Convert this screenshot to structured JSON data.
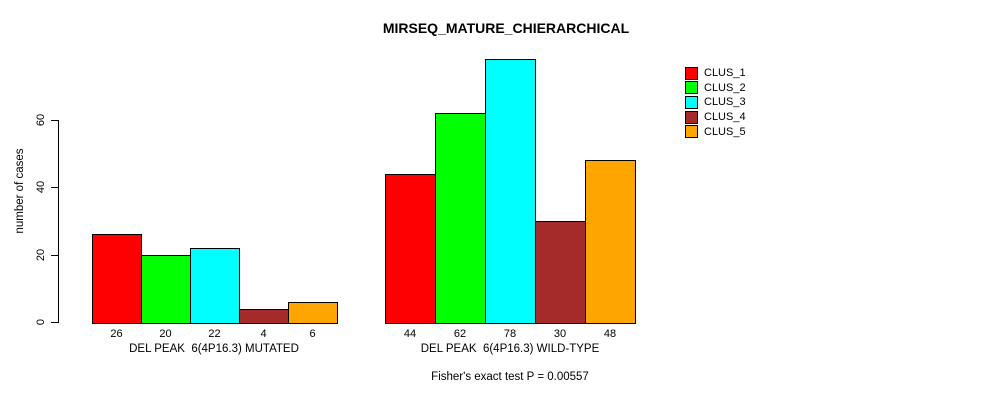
{
  "chart_data": {
    "type": "bar",
    "title": "MIRSEQ_MATURE_CHIERARCHICAL",
    "ylabel": "number of cases",
    "yticks": [
      0,
      20,
      40,
      60
    ],
    "ylim": [
      0,
      80
    ],
    "grid": false,
    "legend_position": "top-right",
    "categories": [
      "DEL PEAK  6(4P16.3) MUTATED",
      "DEL PEAK  6(4P16.3) WILD-TYPE"
    ],
    "series": [
      {
        "name": "CLUS_1",
        "color": "#ff0000",
        "values": [
          26,
          44
        ]
      },
      {
        "name": "CLUS_2",
        "color": "#00ff00",
        "values": [
          20,
          62
        ]
      },
      {
        "name": "CLUS_3",
        "color": "#00ffff",
        "values": [
          22,
          78
        ]
      },
      {
        "name": "CLUS_4",
        "color": "#a52a2a",
        "values": [
          4,
          30
        ]
      },
      {
        "name": "CLUS_5",
        "color": "#ffa500",
        "values": [
          6,
          48
        ]
      }
    ],
    "annotation": "Fisher's exact test P = 0.00557"
  },
  "colors": {
    "background": "#ffffff",
    "axis": "#000000",
    "text": "#000000"
  }
}
